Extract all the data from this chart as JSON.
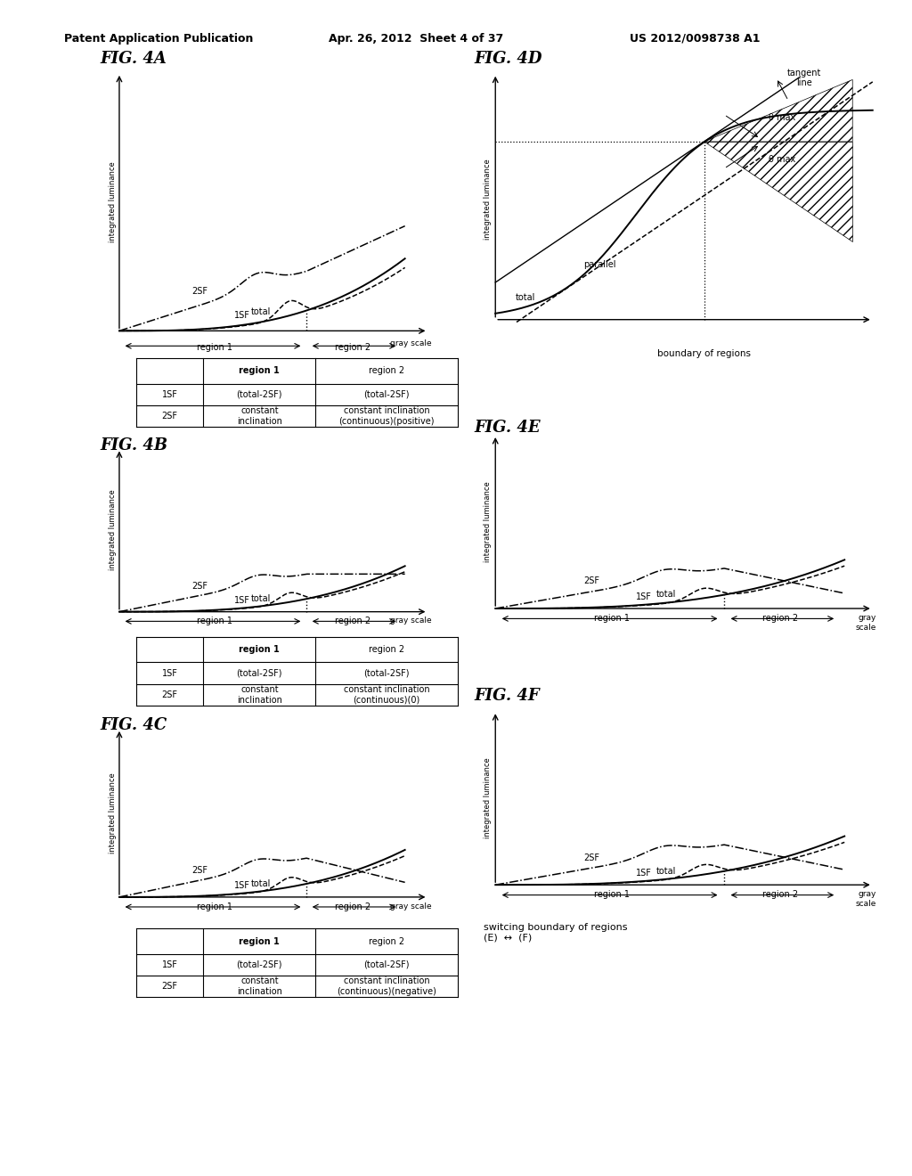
{
  "title_left": "Patent Application Publication",
  "title_mid": "Apr. 26, 2012  Sheet 4 of 37",
  "title_right": "US 2012/0098738 A1",
  "bg_color": "#ffffff",
  "fig_titles": [
    "FIG. 4A",
    "FIG. 4B",
    "FIG. 4C",
    "FIG. 4D",
    "FIG. 4E",
    "FIG. 4F"
  ],
  "table_4A": {
    "r1c1": "region 1",
    "r1c2": "region 2",
    "r2c1": "(total-2SF)",
    "r2c2": "(total-2SF)",
    "r3c1": "constant\ninclination",
    "r3c2": "constant inclination\n(continuous)(positive)"
  },
  "table_4B": {
    "r1c1": "region 1",
    "r1c2": "region 2",
    "r2c1": "(total-2SF)",
    "r2c2": "(total-2SF)",
    "r3c1": "constant\ninclination",
    "r3c2": "constant inclination\n(continuous)(0)"
  },
  "table_4C": {
    "r1c1": "region 1",
    "r1c2": "region 2",
    "r2c1": "(total-2SF)",
    "r2c2": "(total-2SF)",
    "r3c1": "constant\ninclination",
    "r3c2": "constant inclination\n(continuous)(negative)"
  },
  "4D_labels": {
    "total": "total",
    "parallel": "parallel",
    "tangent": "tangent\nline",
    "boundary": "boundary of regions",
    "theta1": "θ max",
    "theta2": "θ max"
  },
  "switching_text": "switcing boundary of regions\n(E)  ↔  (F)"
}
